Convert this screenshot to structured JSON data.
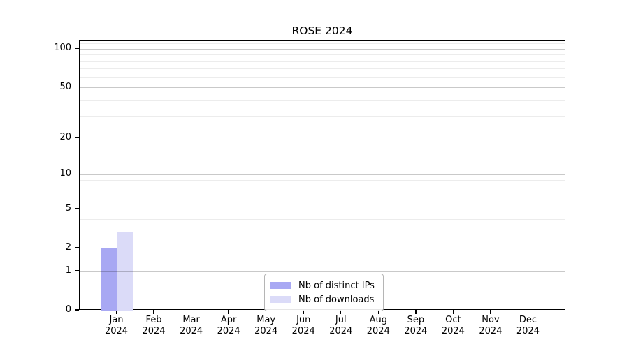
{
  "figure": {
    "title": "ROSE 2024"
  },
  "chart_data": {
    "type": "bar",
    "title": "ROSE 2024",
    "categories": [
      "Jan",
      "Feb",
      "Mar",
      "Apr",
      "May",
      "Jun",
      "Jul",
      "Aug",
      "Sep",
      "Oct",
      "Nov",
      "Dec"
    ],
    "category_year": "2024",
    "series": [
      {
        "name": "Nb of distinct IPs",
        "color": "#a8a8f3",
        "values": [
          2,
          0,
          0,
          0,
          0,
          0,
          0,
          0,
          0,
          0,
          0,
          0
        ]
      },
      {
        "name": "Nb of downloads",
        "color": "#dbdbf8",
        "values": [
          3,
          0,
          0,
          0,
          0,
          0,
          0,
          0,
          0,
          0,
          0,
          0
        ]
      }
    ],
    "xlabel": "",
    "ylabel": "",
    "yscale": "log1p",
    "ylim": [
      0,
      115
    ],
    "yticks": [
      0,
      1,
      2,
      5,
      10,
      20,
      50,
      100
    ],
    "yticks_minor": [
      3,
      4,
      6,
      7,
      8,
      9,
      30,
      40,
      60,
      70,
      80,
      90,
      110
    ],
    "grid": true,
    "grid_over_bars": true,
    "legend_position": "lower center",
    "colors": {
      "spine": "#000000",
      "grid_major": "#c9c9c9",
      "grid_minor": "#ebebeb",
      "background": "#ffffff",
      "text": "#000000"
    }
  }
}
